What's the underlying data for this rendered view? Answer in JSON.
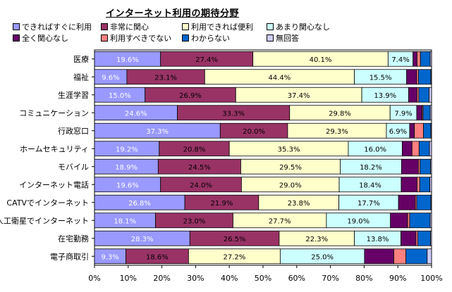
{
  "chart_data": {
    "type": "bar",
    "orientation": "horizontal",
    "stacked": "percent",
    "title": "インターネット利用の期待分野",
    "categories": [
      "医療",
      "福祉",
      "生涯学習",
      "コミュニケーション",
      "行政窓口",
      "ホームセキュリティ",
      "モバイル",
      "インターネット電話",
      "CATVでインターネット",
      "人工衛星でインターネット",
      "在宅勤務",
      "電子商取引"
    ],
    "series": [
      {
        "name": "できればすぐに利用",
        "color": "#9999FF",
        "values": [
          19.6,
          9.6,
          15.0,
          24.6,
          37.3,
          19.2,
          18.9,
          19.6,
          26.8,
          18.1,
          28.3,
          9.3
        ]
      },
      {
        "name": "非常に関心",
        "color": "#993366",
        "values": [
          27.4,
          23.1,
          26.9,
          33.3,
          20.0,
          20.8,
          24.5,
          24.0,
          21.9,
          23.0,
          26.5,
          18.6
        ]
      },
      {
        "name": "利用できれば便利",
        "color": "#FFFFCC",
        "values": [
          40.1,
          44.4,
          37.4,
          29.8,
          29.3,
          35.3,
          29.5,
          29.0,
          23.8,
          27.7,
          22.3,
          27.2
        ]
      },
      {
        "name": "あまり関心なし",
        "color": "#CCFFFF",
        "values": [
          7.4,
          15.5,
          13.9,
          7.9,
          6.9,
          16.0,
          18.2,
          18.4,
          17.7,
          19.0,
          13.8,
          25.0
        ]
      },
      {
        "name": "全く関心なし",
        "color": "#660066",
        "values": [
          1.2,
          3.0,
          2.5,
          1.6,
          1.4,
          2.9,
          5.0,
          4.7,
          5.0,
          5.1,
          4.5,
          8.7
        ]
      },
      {
        "name": "利用すべきでない",
        "color": "#FF8080",
        "values": [
          1.0,
          0.5,
          0.5,
          0.3,
          2.7,
          2.1,
          0.5,
          0.8,
          0.4,
          0.6,
          0.5,
          3.6
        ]
      },
      {
        "name": "わからない",
        "color": "#0066CC",
        "values": [
          2.9,
          3.7,
          3.1,
          2.1,
          2.2,
          3.1,
          3.1,
          3.0,
          4.2,
          6.1,
          3.8,
          6.3
        ]
      },
      {
        "name": "無回答",
        "color": "#CCCCFF",
        "values": [
          0.4,
          0.2,
          0.7,
          0.4,
          0.2,
          0.6,
          0.3,
          0.5,
          0.2,
          0.4,
          0.3,
          1.3
        ]
      }
    ],
    "data_labels": [
      [
        "19.6%",
        "27.4%",
        "40.1%",
        "7.4%"
      ],
      [
        "9.6%",
        "23.1%",
        "44.4%",
        "15.5%"
      ],
      [
        "15.0%",
        "26.9%",
        "37.4%",
        "13.9%"
      ],
      [
        "24.6%",
        "33.3%",
        "29.8%",
        "7.9%"
      ],
      [
        "37.3%",
        "20.0%",
        "29.3%",
        "6.9%"
      ],
      [
        "19.2%",
        "20.8%",
        "35.3%",
        "16.0%"
      ],
      [
        "18.9%",
        "24.5%",
        "29.5%",
        "18.2%"
      ],
      [
        "19.6%",
        "24.0%",
        "29.0%",
        "18.4%"
      ],
      [
        "26.8%",
        "21.9%",
        "23.8%",
        "17.7%"
      ],
      [
        "18.1%",
        "23.0%",
        "27.7%",
        "19.0%"
      ],
      [
        "28.3%",
        "26.5%",
        "22.3%",
        "13.8%"
      ],
      [
        "9.3%",
        "18.6%",
        "27.2%",
        "25.0%"
      ]
    ],
    "xlim": [
      0,
      100
    ],
    "x_ticks": [
      "0%",
      "10%",
      "20%",
      "30%",
      "40%",
      "50%",
      "60%",
      "70%",
      "80%",
      "90%",
      "100%"
    ],
    "legend_position": "top",
    "grid": false
  }
}
